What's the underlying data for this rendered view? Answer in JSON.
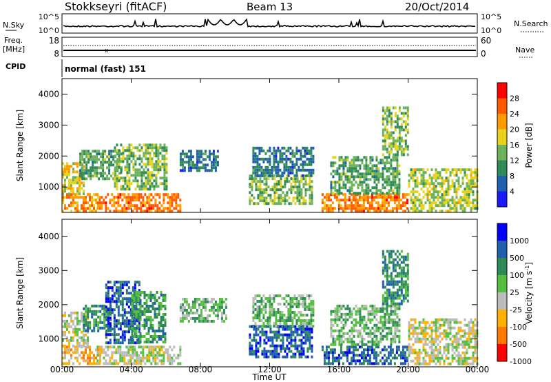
{
  "header": {
    "station": "Stokkseyri (fitACF)",
    "beam": "Beam 13",
    "date": "20/Oct/2014"
  },
  "nsky_panel": {
    "left_label": "N.Sky",
    "left_ticks": [
      "10^5",
      "10^0"
    ],
    "right_label": "N.Search",
    "right_ticks": [
      "10^5",
      "10^0"
    ]
  },
  "freq_panel": {
    "left_label_1": "Freq.",
    "left_label_2": "[MHz]",
    "left_ticks": [
      "18",
      "8"
    ],
    "right_label": "Nave",
    "right_ticks": [
      "60",
      "0"
    ]
  },
  "cpid": {
    "label": "CPID",
    "value": "normal (fast) 151"
  },
  "colors": {
    "power_scale": [
      "#1a1aff",
      "#1f5fb0",
      "#2e8b57",
      "#6cb25a",
      "#e8d21a",
      "#ff9a00",
      "#ff5a00",
      "#ff0000"
    ],
    "velocity_scale": [
      "#0000ff",
      "#1f5fb0",
      "#2e8b57",
      "#55c040",
      "#bbbbbb",
      "#ffb000",
      "#ff7a00",
      "#ff0000"
    ]
  },
  "chart_data": [
    {
      "type": "heatmap",
      "id": "power",
      "ylabel": "Slant Range [km]",
      "yticks": [
        "4000",
        "3000",
        "2000",
        "1000"
      ],
      "ylim": [
        180,
        4500
      ],
      "xlim_hours": [
        0,
        24
      ],
      "colorbar_label": "Power [dB]",
      "colorbar_ticks": [
        "28",
        "24",
        "20",
        "16",
        "12",
        "8",
        "4"
      ],
      "scale_range": [
        0,
        32
      ],
      "regions": [
        {
          "t0": 0.0,
          "t1": 2.2,
          "r0": 250,
          "r1": 800,
          "v": 22
        },
        {
          "t0": 0.0,
          "t1": 1.2,
          "r0": 800,
          "r1": 1800,
          "v": 18
        },
        {
          "t0": 1.0,
          "t1": 3.5,
          "r0": 1300,
          "r1": 2200,
          "v": 12
        },
        {
          "t0": 2.0,
          "t1": 6.8,
          "r0": 250,
          "r1": 800,
          "v": 24
        },
        {
          "t0": 3.0,
          "t1": 6.0,
          "r0": 900,
          "r1": 2400,
          "v": 14
        },
        {
          "t0": 6.8,
          "t1": 9.0,
          "r0": 1500,
          "r1": 2200,
          "v": 8
        },
        {
          "t0": 10.8,
          "t1": 14.5,
          "r0": 500,
          "r1": 1400,
          "v": 14
        },
        {
          "t0": 11.0,
          "t1": 14.5,
          "r0": 1400,
          "r1": 2300,
          "v": 8
        },
        {
          "t0": 15.0,
          "t1": 20.0,
          "r0": 250,
          "r1": 800,
          "v": 24
        },
        {
          "t0": 15.5,
          "t1": 19.5,
          "r0": 800,
          "r1": 2000,
          "v": 12
        },
        {
          "t0": 18.5,
          "t1": 20.0,
          "r0": 2000,
          "r1": 3600,
          "v": 14
        },
        {
          "t0": 20.0,
          "t1": 24.0,
          "r0": 250,
          "r1": 1600,
          "v": 16
        }
      ]
    },
    {
      "type": "heatmap",
      "id": "velocity",
      "ylabel": "Slant Range [km]",
      "yticks": [
        "4000",
        "3000",
        "2000",
        "1000"
      ],
      "ylim": [
        180,
        4500
      ],
      "xlim_hours": [
        0,
        24
      ],
      "xticks": [
        "00:00",
        "04:00",
        "08:00",
        "12:00",
        "16:00",
        "20:00",
        "00:00"
      ],
      "xlabel": "Time UT",
      "colorbar_label": "Velocity [m s",
      "colorbar_label_sup": "-1",
      "colorbar_label_end": "]",
      "colorbar_ticks": [
        "1000",
        "500",
        "100",
        "25",
        "-25",
        "-100",
        "-500",
        "-1000"
      ],
      "scale_range": [
        0,
        8
      ],
      "regions": [
        {
          "t0": 0.0,
          "t1": 2.2,
          "r0": 250,
          "r1": 800,
          "v": 2.5
        },
        {
          "t0": 0.0,
          "t1": 1.5,
          "r0": 800,
          "r1": 1800,
          "v": 3.5
        },
        {
          "t0": 1.2,
          "t1": 2.8,
          "r0": 1200,
          "r1": 2000,
          "v": 5.5
        },
        {
          "t0": 2.0,
          "t1": 6.8,
          "r0": 250,
          "r1": 800,
          "v": 3.6
        },
        {
          "t0": 2.5,
          "t1": 4.5,
          "r0": 900,
          "r1": 2700,
          "v": 6.5
        },
        {
          "t0": 4.0,
          "t1": 6.0,
          "r0": 900,
          "r1": 2400,
          "v": 5.2
        },
        {
          "t0": 6.8,
          "t1": 9.5,
          "r0": 1500,
          "r1": 2200,
          "v": 4.5
        },
        {
          "t0": 10.8,
          "t1": 14.5,
          "r0": 500,
          "r1": 1400,
          "v": 6.5
        },
        {
          "t0": 11.0,
          "t1": 14.5,
          "r0": 1400,
          "r1": 2300,
          "v": 4.5
        },
        {
          "t0": 15.0,
          "t1": 20.0,
          "r0": 250,
          "r1": 800,
          "v": 6.3
        },
        {
          "t0": 15.5,
          "t1": 19.5,
          "r0": 800,
          "r1": 2000,
          "v": 4.6
        },
        {
          "t0": 18.5,
          "t1": 20.0,
          "r0": 2000,
          "r1": 3600,
          "v": 5.5
        },
        {
          "t0": 20.0,
          "t1": 24.0,
          "r0": 250,
          "r1": 1600,
          "v": 3.5
        }
      ]
    }
  ]
}
